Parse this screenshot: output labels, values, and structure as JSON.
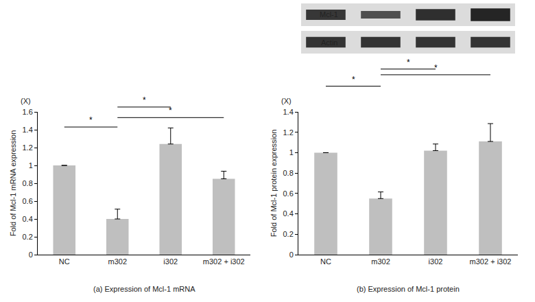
{
  "chart_data": [
    {
      "type": "bar",
      "title": "(a) Expression of Mcl-1 mRNA",
      "y_label": "Fold of Mcl-1 mRNA expression",
      "y_unit": "(X)",
      "categories": [
        "NC",
        "m302",
        "i302",
        "m302 + i302"
      ],
      "values": [
        1.0,
        0.4,
        1.24,
        0.85
      ],
      "errors": [
        0,
        0.11,
        0.18,
        0.085
      ],
      "color": "#bfbfbf",
      "ylim": [
        0,
        1.6
      ],
      "yticks": [
        0,
        0.2,
        0.4,
        0.6,
        0.8,
        1,
        1.2,
        1.4,
        1.6
      ],
      "grid": false,
      "significance": [
        {
          "from": "NC",
          "to": "m302",
          "label": "*"
        },
        {
          "from": "m302",
          "to": "m302 + i302",
          "label": "*"
        },
        {
          "from": "m302",
          "to": "i302",
          "label": "*"
        }
      ]
    },
    {
      "type": "bar",
      "title": "(b) Expression of Mcl-1 protein",
      "y_label": "Fold of Mcl-1 protein expression",
      "y_unit": "(X)",
      "categories": [
        "NC",
        "m302",
        "i302",
        "m302 + i302"
      ],
      "values": [
        1.0,
        0.55,
        1.02,
        1.11
      ],
      "errors": [
        0,
        0.065,
        0.065,
        0.175
      ],
      "color": "#bfbfbf",
      "ylim": [
        0,
        1.4
      ],
      "yticks": [
        0,
        0.2,
        0.4,
        0.6,
        0.8,
        1,
        1.2,
        1.4
      ],
      "grid": false,
      "significance": [
        {
          "from": "NC",
          "to": "m302",
          "label": "*"
        },
        {
          "from": "m302",
          "to": "m302 + i302",
          "label": "*"
        },
        {
          "from": "m302",
          "to": "i302",
          "label": "*"
        }
      ]
    }
  ],
  "blot": {
    "labels": [
      "Mcl-1",
      "Actin"
    ]
  }
}
